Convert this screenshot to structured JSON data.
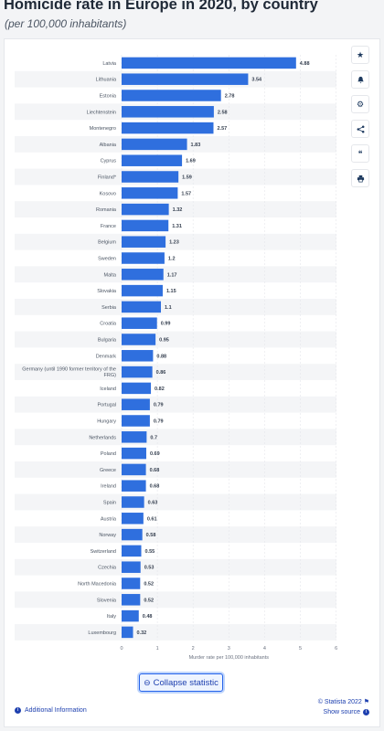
{
  "header": {
    "title": "Homicide rate in Europe in 2020, by country",
    "subtitle": "(per 100,000 inhabitants)"
  },
  "toolbar": {
    "icons": [
      "star-icon",
      "bell-icon",
      "gear-icon",
      "share-icon",
      "quote-icon",
      "print-icon"
    ]
  },
  "footer": {
    "collapse_label": "Collapse statistic",
    "credit": "© Statista 2022",
    "additional_info": "Additional Information",
    "show_source": "Show source"
  },
  "colors": {
    "bar": "#2f6fde",
    "accent": "#1e40af"
  },
  "chart_data": {
    "type": "bar",
    "orientation": "horizontal",
    "categories": [
      "Latvia",
      "Lithuania",
      "Estonia",
      "Liechtenstein",
      "Montenegro",
      "Albania",
      "Cyprus",
      "Finland*",
      "Kosovo",
      "Romania",
      "France",
      "Belgium",
      "Sweden",
      "Malta",
      "Slovakia",
      "Serbia",
      "Croatia",
      "Bulgaria",
      "Denmark",
      "Germany (until 1990 former territory of the FRG)",
      "Iceland",
      "Portugal",
      "Hungary",
      "Netherlands",
      "Poland",
      "Greece",
      "Ireland",
      "Spain",
      "Austria",
      "Norway",
      "Switzerland",
      "Czechia",
      "North Macedonia",
      "Slovenia",
      "Italy",
      "Luxembourg"
    ],
    "values": [
      4.88,
      3.54,
      2.78,
      2.58,
      2.57,
      1.83,
      1.69,
      1.59,
      1.57,
      1.32,
      1.31,
      1.23,
      1.2,
      1.17,
      1.15,
      1.1,
      0.99,
      0.95,
      0.88,
      0.86,
      0.82,
      0.79,
      0.79,
      0.7,
      0.69,
      0.68,
      0.68,
      0.63,
      0.61,
      0.58,
      0.55,
      0.53,
      0.52,
      0.52,
      0.48,
      0.32
    ],
    "value_labels": [
      "4.88",
      "3.54",
      "2.78",
      "2.58",
      "2.57",
      "1.83",
      "1.69",
      "1.59",
      "1.57",
      "1.32",
      "1.31",
      "1.23",
      "1.2",
      "1.17",
      "1.15",
      "1.1",
      "0.99",
      "0.95",
      "0.88",
      "0.86",
      "0.82",
      "0.79",
      "0.79",
      "0.7",
      "0.69",
      "0.68",
      "0.68",
      "0.63",
      "0.61",
      "0.58",
      "0.55",
      "0.53",
      "0.52",
      "0.52",
      "0.48",
      "0.32"
    ],
    "xlabel": "Murder rate per 100,000 inhabitants",
    "xticks": [
      0,
      1,
      2,
      3,
      4,
      5,
      6
    ],
    "xlim": [
      0,
      6
    ],
    "grid": true
  }
}
